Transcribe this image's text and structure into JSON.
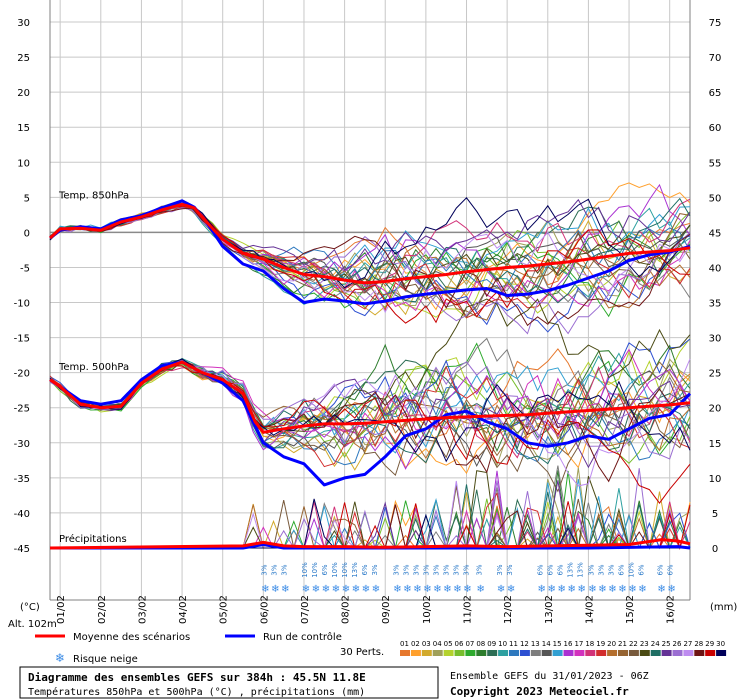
{
  "chart_data": {
    "type": "line",
    "left_axis": {
      "unit": "(°C)",
      "ticks": [
        "30",
        "25",
        "20",
        "15",
        "10",
        "5",
        "0",
        "-5",
        "-10",
        "-15",
        "-20",
        "-25",
        "-30",
        "-35",
        "-40",
        "-45"
      ],
      "range": [
        -45,
        30
      ]
    },
    "right_axis": {
      "unit": "(mm)",
      "ticks": [
        "75",
        "70",
        "65",
        "60",
        "55",
        "50",
        "45",
        "40",
        "35",
        "30",
        "25",
        "20",
        "15",
        "10",
        "5",
        "0"
      ],
      "range": [
        0,
        75
      ]
    },
    "x_labels": [
      "01/02",
      "02/02",
      "03/02",
      "04/02",
      "05/02",
      "06/02",
      "07/02",
      "08/02",
      "09/02",
      "10/02",
      "11/02",
      "12/02",
      "13/02",
      "14/02",
      "15/02",
      "16/02"
    ],
    "altitude_label": "Alt. 102m",
    "panel_labels": {
      "t850": "Temp. 850hPa",
      "t500": "Temp. 500hPa",
      "precip": "Précipitations"
    },
    "grid": true,
    "x_start_day": 0.75,
    "x_end_day": 16.5,
    "series": [
      {
        "name": "Moyenne des scénarios",
        "color": "#ff0000",
        "t850": [
          [
            0.75,
            -0.8
          ],
          [
            1.0,
            0.5
          ],
          [
            1.5,
            0.6
          ],
          [
            2.0,
            0.3
          ],
          [
            2.5,
            1.5
          ],
          [
            3.0,
            2.2
          ],
          [
            3.5,
            3.2
          ],
          [
            4.0,
            4.0
          ],
          [
            4.3,
            3.5
          ],
          [
            4.6,
            1.5
          ],
          [
            5.0,
            -1.0
          ],
          [
            5.5,
            -3.0
          ],
          [
            6.0,
            -3.8
          ],
          [
            6.5,
            -5.0
          ],
          [
            7.0,
            -6.0
          ],
          [
            7.5,
            -6.3
          ],
          [
            8.0,
            -6.8
          ],
          [
            8.5,
            -7.2
          ],
          [
            9.0,
            -7.0
          ],
          [
            9.5,
            -6.6
          ],
          [
            10.0,
            -6.3
          ],
          [
            10.5,
            -6.0
          ],
          [
            11.0,
            -5.6
          ],
          [
            11.5,
            -5.3
          ],
          [
            12.0,
            -5.0
          ],
          [
            12.5,
            -4.8
          ],
          [
            13.0,
            -4.5
          ],
          [
            13.5,
            -4.2
          ],
          [
            14.0,
            -3.8
          ],
          [
            14.5,
            -3.4
          ],
          [
            15.0,
            -3.0
          ],
          [
            15.5,
            -2.8
          ],
          [
            16.0,
            -2.6
          ],
          [
            16.5,
            -2.2
          ]
        ],
        "t500": [
          [
            0.75,
            -21.0
          ],
          [
            1.0,
            -22.0
          ],
          [
            1.5,
            -24.5
          ],
          [
            2.0,
            -25.0
          ],
          [
            2.5,
            -24.8
          ],
          [
            3.0,
            -21.5
          ],
          [
            3.5,
            -19.5
          ],
          [
            4.0,
            -18.5
          ],
          [
            4.5,
            -20.0
          ],
          [
            5.0,
            -21.0
          ],
          [
            5.5,
            -23.0
          ],
          [
            5.8,
            -27.0
          ],
          [
            6.0,
            -28.5
          ],
          [
            6.5,
            -28.0
          ],
          [
            7.0,
            -27.6
          ],
          [
            7.5,
            -27.3
          ],
          [
            8.0,
            -27.3
          ],
          [
            8.5,
            -27.2
          ],
          [
            9.0,
            -27.0
          ],
          [
            9.5,
            -26.8
          ],
          [
            10.0,
            -26.6
          ],
          [
            10.5,
            -26.4
          ],
          [
            11.0,
            -26.3
          ],
          [
            11.5,
            -26.2
          ],
          [
            12.0,
            -26.1
          ],
          [
            12.5,
            -26.0
          ],
          [
            13.0,
            -25.8
          ],
          [
            13.5,
            -25.6
          ],
          [
            14.0,
            -25.4
          ],
          [
            14.5,
            -25.2
          ],
          [
            15.0,
            -25.0
          ],
          [
            15.5,
            -24.8
          ],
          [
            16.0,
            -24.6
          ],
          [
            16.5,
            -24.3
          ]
        ],
        "precip_mm": [
          [
            0.75,
            0.0
          ],
          [
            5.5,
            0.3
          ],
          [
            6.0,
            0.8
          ],
          [
            6.5,
            0.3
          ],
          [
            7.0,
            0.2
          ],
          [
            8.0,
            0.2
          ],
          [
            9.0,
            0.1
          ],
          [
            10.0,
            0.2
          ],
          [
            11.0,
            0.3
          ],
          [
            12.0,
            0.2
          ],
          [
            13.0,
            0.3
          ],
          [
            14.0,
            0.4
          ],
          [
            15.0,
            0.5
          ],
          [
            15.8,
            1.2
          ],
          [
            16.2,
            1.0
          ],
          [
            16.5,
            0.6
          ]
        ]
      },
      {
        "name": "Run de contrôle",
        "color": "#0000ff",
        "t850": [
          [
            0.75,
            -0.8
          ],
          [
            1.0,
            0.3
          ],
          [
            1.5,
            0.8
          ],
          [
            2.0,
            0.5
          ],
          [
            2.5,
            1.8
          ],
          [
            3.0,
            2.4
          ],
          [
            3.5,
            3.5
          ],
          [
            4.0,
            4.5
          ],
          [
            4.3,
            3.6
          ],
          [
            4.6,
            1.5
          ],
          [
            5.0,
            -2.0
          ],
          [
            5.5,
            -4.5
          ],
          [
            6.0,
            -5.5
          ],
          [
            6.5,
            -8.0
          ],
          [
            7.0,
            -10.0
          ],
          [
            7.5,
            -9.5
          ],
          [
            8.0,
            -9.8
          ],
          [
            8.5,
            -10.2
          ],
          [
            9.0,
            -9.8
          ],
          [
            9.5,
            -9.2
          ],
          [
            10.0,
            -8.8
          ],
          [
            10.5,
            -8.5
          ],
          [
            11.0,
            -8.2
          ],
          [
            11.5,
            -8.0
          ],
          [
            12.0,
            -9.0
          ],
          [
            12.5,
            -8.8
          ],
          [
            13.0,
            -8.3
          ],
          [
            13.5,
            -7.5
          ],
          [
            14.0,
            -6.5
          ],
          [
            14.5,
            -5.5
          ],
          [
            15.0,
            -4.0
          ],
          [
            15.5,
            -3.2
          ],
          [
            16.0,
            -2.8
          ],
          [
            16.5,
            -2.0
          ]
        ],
        "t500": [
          [
            0.75,
            -21.0
          ],
          [
            1.0,
            -22.0
          ],
          [
            1.5,
            -24.0
          ],
          [
            2.0,
            -24.5
          ],
          [
            2.5,
            -24.0
          ],
          [
            3.0,
            -21.0
          ],
          [
            3.5,
            -19.0
          ],
          [
            4.0,
            -18.5
          ],
          [
            4.5,
            -20.0
          ],
          [
            5.0,
            -21.5
          ],
          [
            5.5,
            -24.0
          ],
          [
            6.0,
            -30.0
          ],
          [
            6.5,
            -32.0
          ],
          [
            7.0,
            -33.0
          ],
          [
            7.5,
            -36.0
          ],
          [
            8.0,
            -35.0
          ],
          [
            8.5,
            -34.5
          ],
          [
            9.0,
            -32.0
          ],
          [
            9.5,
            -29.0
          ],
          [
            10.0,
            -28.0
          ],
          [
            10.5,
            -26.0
          ],
          [
            11.0,
            -25.5
          ],
          [
            11.5,
            -27.0
          ],
          [
            12.0,
            -28.0
          ],
          [
            12.5,
            -30.0
          ],
          [
            13.0,
            -30.5
          ],
          [
            13.5,
            -30.0
          ],
          [
            14.0,
            -29.0
          ],
          [
            14.5,
            -29.5
          ],
          [
            15.0,
            -28.0
          ],
          [
            15.5,
            -26.5
          ],
          [
            16.0,
            -26.0
          ],
          [
            16.5,
            -23.0
          ]
        ],
        "precip_mm": [
          [
            0.75,
            0.0
          ],
          [
            5.5,
            0.0
          ],
          [
            6.0,
            0.5
          ],
          [
            6.5,
            0.0
          ],
          [
            12.0,
            0.0
          ],
          [
            13.0,
            0.0
          ],
          [
            14.0,
            0.0
          ],
          [
            16.2,
            0.2
          ],
          [
            16.5,
            0.0
          ]
        ]
      }
    ],
    "snow_risk": [
      {
        "day": 6.0,
        "labels": [
          "3%",
          "3%",
          "3%"
        ]
      },
      {
        "day": 7.0,
        "labels": [
          "10%",
          "10%",
          "6%",
          "10%",
          "10%",
          "13%",
          "6%",
          "3%"
        ]
      },
      {
        "day": 9.25,
        "labels": [
          "3%",
          "3%",
          "3%",
          "3%",
          "3%",
          "3%",
          "3%",
          "3%"
        ]
      },
      {
        "day": 11.3,
        "labels": [
          "3%"
        ]
      },
      {
        "day": 11.8,
        "labels": [
          "3%",
          "3%"
        ]
      },
      {
        "day": 12.8,
        "labels": [
          "6%",
          "6%",
          "6%",
          "13%",
          "13%"
        ]
      },
      {
        "day": 14.05,
        "labels": [
          "3%",
          "3%",
          "3%",
          "6%",
          "10%",
          "6%"
        ]
      },
      {
        "day": 15.75,
        "labels": [
          "6%",
          "6%"
        ]
      }
    ]
  },
  "legend": {
    "mean_label": "Moyenne des scénarios",
    "control_label": "Run de contrôle",
    "snow_label": "Risque neige",
    "perts_label": "30 Perts.",
    "pert_numbers": [
      "01",
      "02",
      "03",
      "04",
      "05",
      "06",
      "07",
      "08",
      "09",
      "10",
      "11",
      "12",
      "13",
      "14",
      "15",
      "16",
      "17",
      "18",
      "19",
      "20",
      "21",
      "22",
      "23",
      "24",
      "25",
      "26",
      "27",
      "28",
      "29",
      "30"
    ],
    "pert_colors": [
      "#e6782d",
      "#ffa02d",
      "#d2aa2d",
      "#a0a05a",
      "#b4d22d",
      "#78be2d",
      "#2daa2d",
      "#2d7d2d",
      "#2d6e55",
      "#2da0a0",
      "#2d78be",
      "#2d50d2",
      "#7d7d7d",
      "#555555",
      "#32a0d2",
      "#aa32d2",
      "#d232be",
      "#d23278",
      "#d22d2d",
      "#b46e2d",
      "#966432",
      "#785a3c",
      "#4b4b14",
      "#1e6e64",
      "#643296",
      "#9b6ed2",
      "#be8cf0",
      "#6e1414",
      "#c80000",
      "#00005a"
    ]
  },
  "footer": {
    "title": "Diagramme des ensembles GEFS sur 384h : 45.5N 11.8E",
    "subtitle": "Températures 850hPa et 500hPa (°C) , précipitations (mm)",
    "run_info": "Ensemble GEFS du 31/01/2023 - 06Z",
    "copyright": "Copyright 2023 Meteociel.fr"
  }
}
